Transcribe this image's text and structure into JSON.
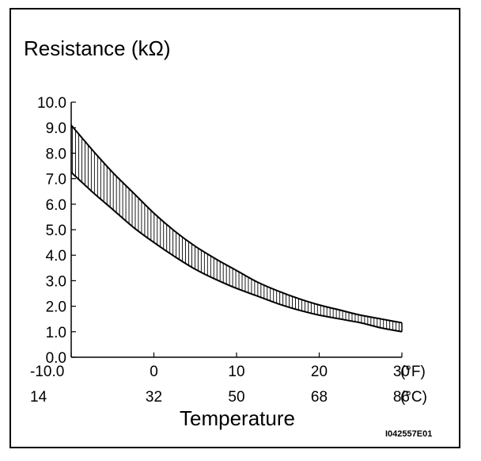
{
  "chart_data": {
    "type": "area",
    "ylabel": "Resistance (kΩ)",
    "xlabel": "Temperature",
    "figure_code": "I042557E01",
    "ylim": [
      0,
      10
    ],
    "xlim": [
      -10,
      30
    ],
    "y_ticks": [
      "0.0",
      "1.0",
      "2.0",
      "3.0",
      "4.0",
      "5.0",
      "6.0",
      "7.0",
      "8.0",
      "9.0",
      "10.0"
    ],
    "x_ticks_top": [
      "-10.0",
      "0",
      "10",
      "20",
      "30"
    ],
    "x_ticks_top_unit": "(°F)",
    "x_ticks_bottom": [
      "14",
      "32",
      "50",
      "68",
      "86"
    ],
    "x_ticks_bottom_unit": "(°C)",
    "grid": false,
    "series": [
      {
        "x": [
          -10,
          -7.5,
          -5,
          -2.5,
          0,
          2.5,
          5,
          7.5,
          10,
          12.5,
          15,
          17.5,
          20,
          22.5,
          25,
          27.5,
          30
        ],
        "values": [
          9.1,
          8.15,
          7.25,
          6.45,
          5.65,
          4.95,
          4.35,
          3.85,
          3.4,
          2.95,
          2.6,
          2.3,
          2.05,
          1.85,
          1.65,
          1.5,
          1.35
        ]
      },
      {
        "x": [
          -10,
          -7.5,
          -5,
          -2.5,
          0,
          2.5,
          5,
          7.5,
          10,
          12.5,
          15,
          17.5,
          20,
          22.5,
          25,
          27.5,
          30
        ],
        "values": [
          7.25,
          6.5,
          5.8,
          5.1,
          4.5,
          3.95,
          3.45,
          3.05,
          2.7,
          2.4,
          2.1,
          1.85,
          1.65,
          1.5,
          1.35,
          1.15,
          1.0
        ]
      }
    ],
    "fill": "vertical-hatch",
    "color": "#000000"
  }
}
